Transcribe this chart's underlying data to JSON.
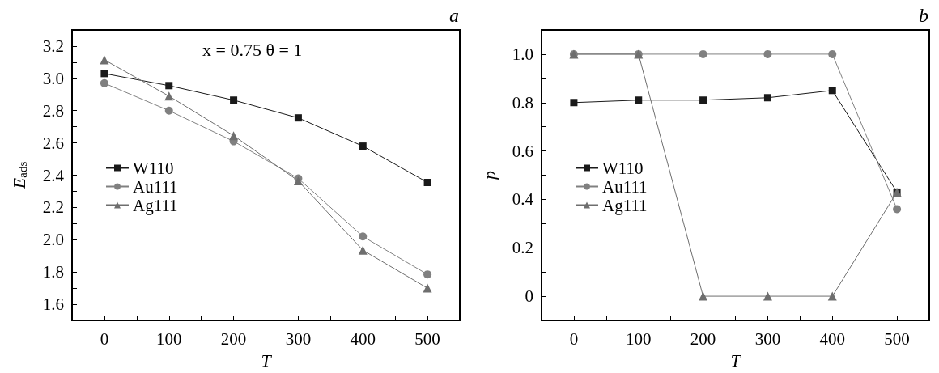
{
  "chart_data": [
    {
      "type": "line",
      "title": "a",
      "xlabel": "T",
      "ylabel": "E$_{ads}$",
      "annotations": [
        "x = 0.75 θ = 1"
      ],
      "x": [
        0,
        100,
        200,
        300,
        400,
        500
      ],
      "series": [
        {
          "name": "W110",
          "color": "#1a1a1a",
          "marker": "square",
          "values": [
            3.03,
            2.955,
            2.865,
            2.755,
            2.58,
            2.355
          ]
        },
        {
          "name": "Au111",
          "color": "#808080",
          "marker": "circle",
          "values": [
            2.97,
            2.8,
            2.61,
            2.38,
            2.02,
            1.785
          ]
        },
        {
          "name": "Ag111",
          "color": "#6e6e6e",
          "marker": "triangle",
          "values": [
            3.115,
            2.89,
            2.645,
            2.365,
            1.935,
            1.7
          ]
        }
      ],
      "xlim": [
        -50,
        550
      ],
      "xticks": [
        {
          "value": -50,
          "label": null
        },
        0,
        {
          "value": 50,
          "label": null
        },
        100,
        {
          "value": 150,
          "label": null
        },
        200,
        {
          "value": 250,
          "label": null
        },
        300,
        {
          "value": 350,
          "label": null
        },
        400,
        {
          "value": 450,
          "label": null
        },
        500,
        {
          "value": 550,
          "label": null
        }
      ],
      "ylim": [
        1.5,
        3.3
      ],
      "yticks": [
        {
          "value": 1.5,
          "label": null
        },
        1.6,
        {
          "value": 1.7,
          "label": null
        },
        1.8,
        {
          "value": 1.9,
          "label": null
        },
        {
          "value": 2.0,
          "label": "2.0"
        },
        {
          "value": 2.1,
          "label": null
        },
        2.2,
        {
          "value": 2.3,
          "label": null
        },
        2.4,
        {
          "value": 2.5,
          "label": null
        },
        2.6,
        {
          "value": 2.7,
          "label": null
        },
        2.8,
        {
          "value": 2.9,
          "label": null
        },
        {
          "value": 3.0,
          "label": "3.0"
        },
        {
          "value": 3.1,
          "label": null
        },
        3.2,
        {
          "value": 3.3,
          "label": null
        }
      ],
      "legend": "left",
      "grid": false
    },
    {
      "type": "line",
      "title": "b",
      "xlabel": "T",
      "ylabel": "p",
      "x": [
        0,
        100,
        200,
        300,
        400,
        500
      ],
      "series": [
        {
          "name": "W110",
          "color": "#1a1a1a",
          "marker": "square",
          "values": [
            0.8,
            0.81,
            0.81,
            0.82,
            0.85,
            0.43
          ]
        },
        {
          "name": "Au111",
          "color": "#808080",
          "marker": "circle",
          "values": [
            1.0,
            1.0,
            1.0,
            1.0,
            1.0,
            0.36
          ]
        },
        {
          "name": "Ag111",
          "color": "#6e6e6e",
          "marker": "triangle",
          "values": [
            1.0,
            1.0,
            0.0,
            0.0,
            0.0,
            0.43
          ]
        }
      ],
      "xlim": [
        -50,
        550
      ],
      "xticks": [
        {
          "value": -50,
          "label": null
        },
        0,
        {
          "value": 50,
          "label": null
        },
        100,
        {
          "value": 150,
          "label": null
        },
        200,
        {
          "value": 250,
          "label": null
        },
        300,
        {
          "value": 350,
          "label": null
        },
        400,
        {
          "value": 450,
          "label": null
        },
        500,
        {
          "value": 550,
          "label": null
        }
      ],
      "ylim": [
        -0.1,
        1.1
      ],
      "yticks": [
        {
          "value": -0.1,
          "label": null
        },
        0,
        {
          "value": 0.1,
          "label": null
        },
        0.2,
        {
          "value": 0.3,
          "label": null
        },
        0.4,
        {
          "value": 0.5,
          "label": null
        },
        0.6,
        {
          "value": 0.7,
          "label": null
        },
        0.8,
        {
          "value": 0.9,
          "label": null
        },
        {
          "value": 1.0,
          "label": "1.0"
        },
        {
          "value": 1.1,
          "label": null
        }
      ],
      "legend": "left",
      "grid": false
    }
  ]
}
